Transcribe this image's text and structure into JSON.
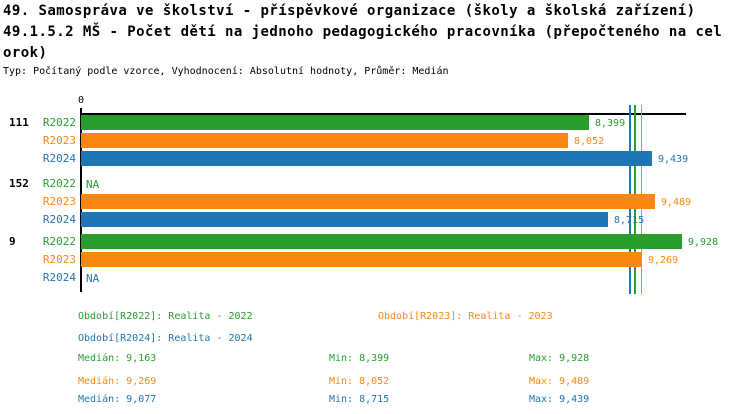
{
  "header": {
    "title_line1": "49. Samospráva ve školství - příspěvkové organizace (školy a školská zařízení)",
    "title_line2": "49.1.5.2 MŠ - Počet dětí na jednoho pedagogického pracovníka (přepočteného na cel",
    "title_line3": "orok)",
    "meta_line": "Typ: Počítaný podle vzorce, Vyhodnocení: Absolutní hodnoty, Průměr: Medián"
  },
  "colors": {
    "R2022": "#2a9d2f",
    "R2023": "#fb8712",
    "R2024": "#1f76b4",
    "axis": "#000000"
  },
  "chart_data": {
    "type": "bar",
    "orientation": "horizontal",
    "title": "49.1.5.2 MŠ - Počet dětí na jednoho pedagogického pracovníka (přepočteného na celorok)",
    "x_axis": {
      "origin_label": "0",
      "min": 0,
      "max": 10000,
      "grid": false
    },
    "categories": [
      "111",
      "152",
      "9"
    ],
    "series": [
      {
        "name": "R2022",
        "values": [
          8399,
          null,
          9928
        ],
        "median": 9163,
        "min": 8399,
        "max": 9928
      },
      {
        "name": "R2023",
        "values": [
          8052,
          9489,
          9269
        ],
        "median": 9269,
        "min": 8052,
        "max": 9489
      },
      {
        "name": "R2024",
        "values": [
          9439,
          8715,
          null
        ],
        "median": 9077,
        "min": 8715,
        "max": 9439
      }
    ],
    "groups": [
      {
        "label": "111",
        "bars": [
          {
            "series": "R2022",
            "value": 8399,
            "text": "8,399"
          },
          {
            "series": "R2023",
            "value": 8052,
            "text": "8,052"
          },
          {
            "series": "R2024",
            "value": 9439,
            "text": "9,439"
          }
        ]
      },
      {
        "label": "152",
        "bars": [
          {
            "series": "R2022",
            "value": null,
            "text": "NA"
          },
          {
            "series": "R2023",
            "value": 9489,
            "text": "9,489"
          },
          {
            "series": "R2024",
            "value": 8715,
            "text": "8,715"
          }
        ]
      },
      {
        "label": "9",
        "bars": [
          {
            "series": "R2022",
            "value": 9928,
            "text": "9,928"
          },
          {
            "series": "R2023",
            "value": 9269,
            "text": "9,269"
          },
          {
            "series": "R2024",
            "value": null,
            "text": "NA"
          }
        ]
      }
    ],
    "median_lines": [
      {
        "series": "R2024",
        "value": 9077
      },
      {
        "series": "R2022",
        "value": 9163
      },
      {
        "series": "R2023",
        "value": 9269
      }
    ]
  },
  "legend": {
    "items": [
      {
        "series": "R2022",
        "label": "Období[R2022]: Realita - 2022"
      },
      {
        "series": "R2023",
        "label": "Období[R2023]: Realita - 2023"
      },
      {
        "series": "R2024",
        "label": "Období[R2024]: Realita - 2024"
      }
    ]
  },
  "stats": {
    "rows": [
      {
        "series": "R2022",
        "median": "Medián: 9,163",
        "min": "Min: 8,399",
        "max": "Max: 9,928"
      },
      {
        "series": "R2023",
        "median": "Medián: 9,269",
        "min": "Min: 8,052",
        "max": "Max: 9,489"
      },
      {
        "series": "R2024",
        "median": "Medián: 9,077",
        "min": "Min: 8,715",
        "max": "Max: 9,439"
      }
    ]
  }
}
